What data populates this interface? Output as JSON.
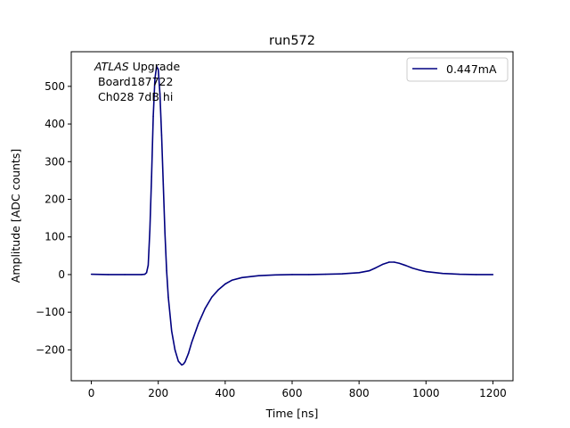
{
  "chart_data": {
    "type": "line",
    "title": "run572",
    "xlabel": "Time [ns]",
    "ylabel": "Amplitude [ADC counts]",
    "xlim": [
      -60,
      1260
    ],
    "ylim": [
      -282,
      592
    ],
    "xticks": [
      0,
      200,
      400,
      600,
      800,
      1000,
      1200
    ],
    "xtick_labels": [
      "0",
      "200",
      "400",
      "600",
      "800",
      "1000",
      "1200"
    ],
    "yticks": [
      -200,
      -100,
      0,
      100,
      200,
      300,
      400,
      500
    ],
    "ytick_labels": [
      "−200",
      "−100",
      "0",
      "100",
      "200",
      "300",
      "400",
      "500"
    ],
    "grid": false,
    "legend_position": "top-right",
    "annotation": {
      "line1_italic": "ATLAS",
      "line1_rest": " Upgrade",
      "line2": "Board187722",
      "line3": "Ch028 7dB hi"
    },
    "series": [
      {
        "name": "0.447mA",
        "color": "#000080",
        "x": [
          0,
          50,
          100,
          150,
          160,
          165,
          170,
          175,
          180,
          185,
          190,
          195,
          200,
          205,
          210,
          215,
          220,
          225,
          230,
          240,
          250,
          260,
          270,
          275,
          280,
          290,
          300,
          320,
          340,
          360,
          380,
          400,
          420,
          450,
          500,
          550,
          600,
          650,
          700,
          750,
          800,
          830,
          850,
          870,
          890,
          905,
          920,
          940,
          960,
          980,
          1000,
          1050,
          1100,
          1150,
          1200
        ],
        "y": [
          1,
          0,
          0,
          0,
          1,
          5,
          25,
          120,
          260,
          420,
          520,
          553,
          545,
          480,
          370,
          240,
          110,
          10,
          -60,
          -150,
          -200,
          -230,
          -240,
          -238,
          -232,
          -210,
          -180,
          -130,
          -90,
          -60,
          -40,
          -25,
          -15,
          -8,
          -3,
          -1,
          0,
          0,
          1,
          2,
          5,
          10,
          18,
          27,
          33,
          33,
          30,
          24,
          17,
          12,
          8,
          3,
          1,
          0,
          0
        ]
      }
    ]
  }
}
